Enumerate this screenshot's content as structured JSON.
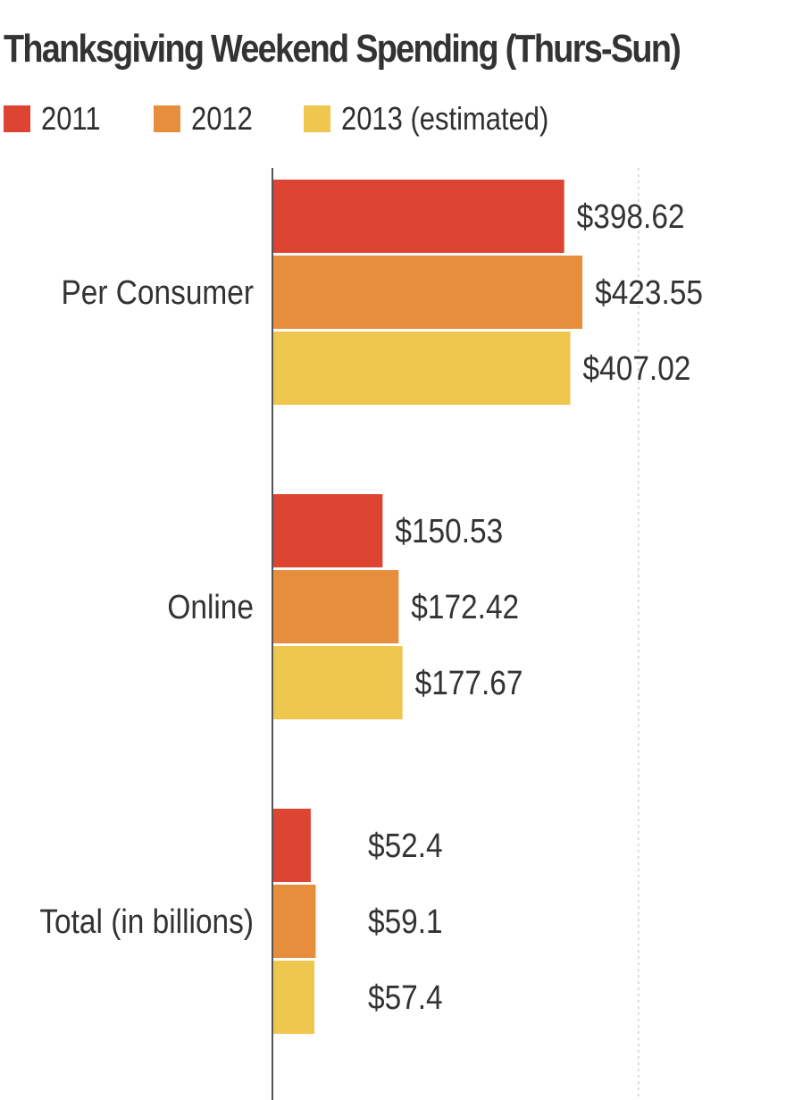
{
  "chart_data": {
    "type": "bar",
    "orientation": "horizontal",
    "title": "Thanksgiving Weekend Spending (Thurs-Sun)",
    "categories": [
      "Per Consumer",
      "Online",
      "Total (in billions)"
    ],
    "series": [
      {
        "name": "2011",
        "color": "#dd4532",
        "values": [
          398.62,
          150.53,
          52.4
        ],
        "labels": [
          "$398.62",
          "$150.53",
          "$52.4"
        ]
      },
      {
        "name": "2012",
        "color": "#e68e3c",
        "values": [
          423.55,
          172.42,
          59.1
        ],
        "labels": [
          "$423.55",
          "$172.42",
          "$59.1"
        ]
      },
      {
        "name": "2013 (estimated)",
        "color": "#efc74e",
        "values": [
          407.02,
          177.67,
          57.4
        ],
        "labels": [
          "$407.02",
          "$177.67",
          "$57.4"
        ]
      }
    ],
    "xlim": [
      0,
      500
    ],
    "xlabel": "",
    "ylabel": "",
    "grid": true,
    "legend_position": "top-left"
  }
}
